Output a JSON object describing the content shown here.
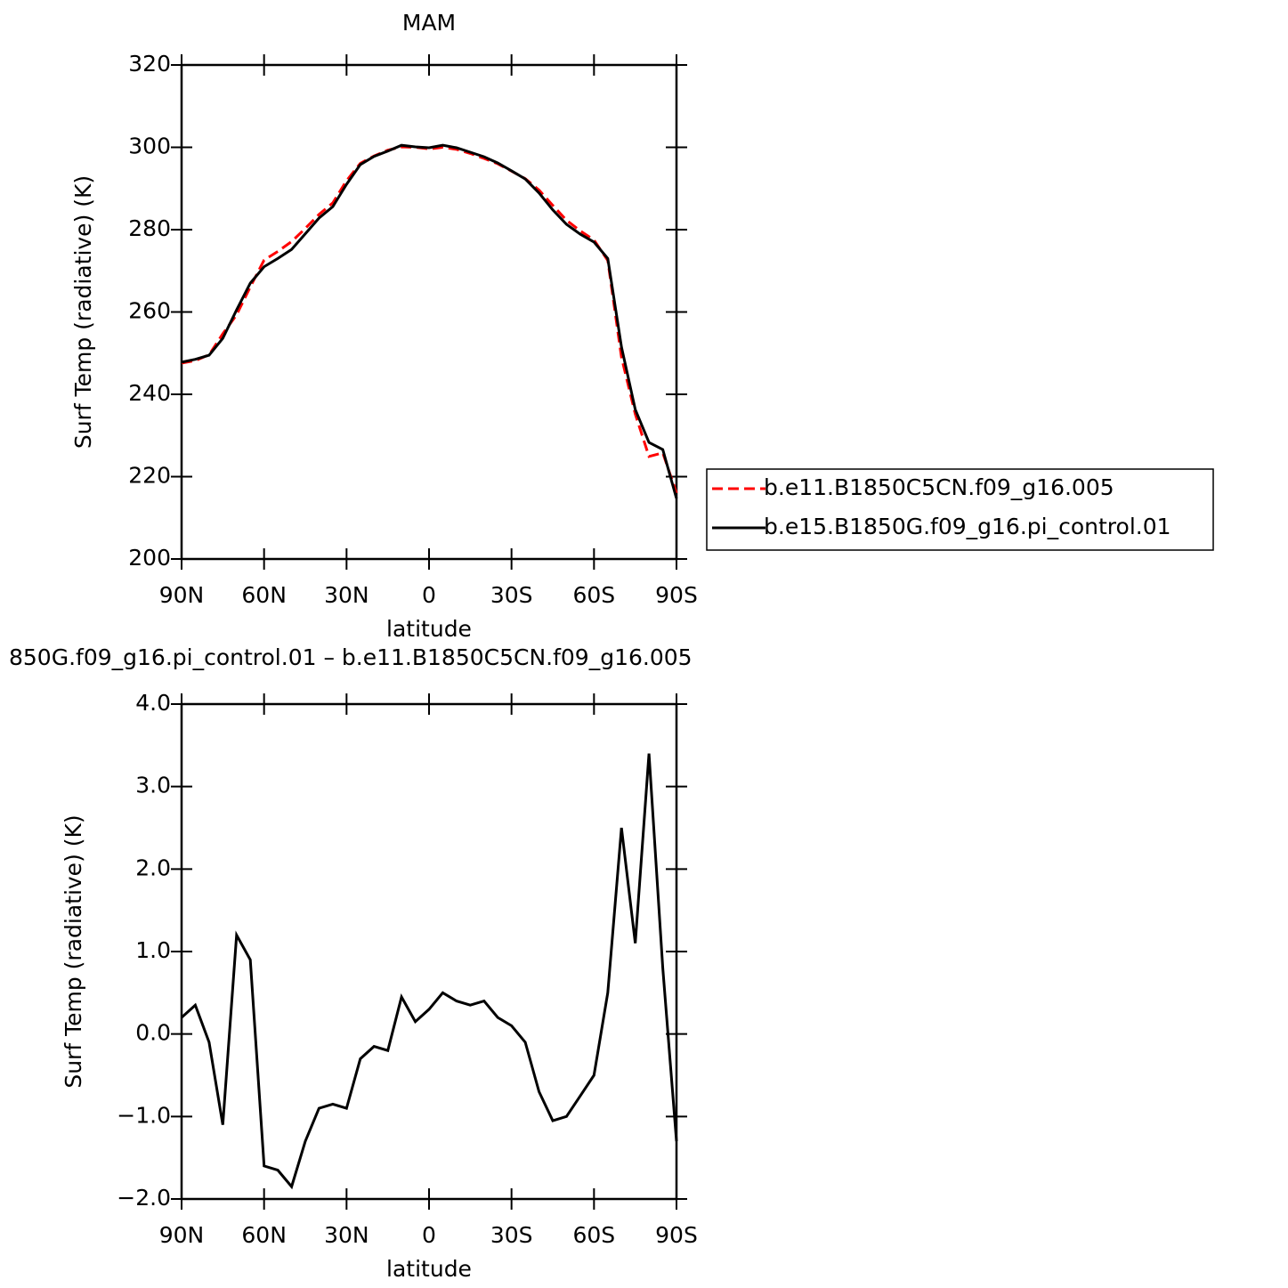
{
  "chart_data": [
    {
      "type": "line",
      "title": "MAM",
      "x_label": "latitude",
      "y_label": "Surf Temp (radiative) (K)",
      "x": [
        90,
        85,
        80,
        75,
        70,
        65,
        60,
        55,
        50,
        45,
        40,
        35,
        30,
        25,
        20,
        15,
        10,
        5,
        0,
        -5,
        -10,
        -15,
        -20,
        -25,
        -30,
        -35,
        -40,
        -45,
        -50,
        -55,
        -60,
        -65,
        -70,
        -75,
        -80,
        -85,
        -90
      ],
      "series": [
        {
          "name": "b.e11.B1850C5CN.f09_g16.005",
          "color": "#ff0000",
          "style": "dashed",
          "values": [
            247.6,
            248.2,
            249.6,
            254.7,
            259.3,
            266.1,
            272.6,
            274.7,
            277.1,
            280.3,
            283.7,
            286.5,
            291.9,
            296.1,
            297.9,
            299.3,
            300.1,
            300.0,
            299.6,
            300.0,
            299.5,
            298.5,
            297.3,
            296.0,
            294.2,
            292.4,
            289.6,
            285.9,
            282.3,
            279.7,
            277.5,
            272.5,
            249.0,
            235.2,
            224.9,
            225.8,
            216.0
          ]
        },
        {
          "name": "b.e15.B1850G.f09_g16.pi_control.01",
          "color": "#000000",
          "style": "solid",
          "values": [
            247.8,
            248.5,
            249.5,
            253.6,
            260.5,
            267.0,
            271.0,
            273.0,
            275.2,
            279.0,
            282.8,
            285.6,
            291.0,
            295.8,
            297.8,
            299.1,
            300.5,
            300.1,
            299.9,
            300.5,
            299.9,
            298.8,
            297.7,
            296.2,
            294.3,
            292.3,
            288.9,
            284.8,
            281.3,
            278.9,
            277.0,
            273.0,
            251.5,
            236.3,
            228.3,
            226.6,
            214.7
          ]
        }
      ],
      "xlim": [
        90,
        -90
      ],
      "xticks": [
        {
          "value": 90,
          "label": "90N"
        },
        {
          "value": 60,
          "label": "60N"
        },
        {
          "value": 30,
          "label": "30N"
        },
        0,
        {
          "value": -30,
          "label": "30S"
        },
        {
          "value": -60,
          "label": "60S"
        },
        {
          "value": -90,
          "label": "90S"
        }
      ],
      "ylim": [
        200,
        320
      ],
      "yticks": [
        200,
        220,
        240,
        260,
        280,
        300,
        320
      ],
      "legend": "right"
    },
    {
      "type": "line",
      "title": "850G.f09_g16.pi_control.01 – b.e11.B1850C5CN.f09_g16.005",
      "x_label": "latitude",
      "y_label": "Surf Temp (radiative) (K)",
      "x": [
        90,
        85,
        80,
        75,
        70,
        65,
        60,
        55,
        50,
        45,
        40,
        35,
        30,
        25,
        20,
        15,
        10,
        5,
        0,
        -5,
        -10,
        -15,
        -20,
        -25,
        -30,
        -35,
        -40,
        -45,
        -50,
        -55,
        -60,
        -65,
        -70,
        -75,
        -80,
        -85,
        -90
      ],
      "series": [
        {
          "color": "#000000",
          "style": "solid",
          "values": [
            0.2,
            0.35,
            -0.1,
            -1.1,
            1.2,
            0.9,
            -1.6,
            -1.65,
            -1.85,
            -1.3,
            -0.9,
            -0.85,
            -0.9,
            -0.3,
            -0.15,
            -0.2,
            0.45,
            0.15,
            0.3,
            0.5,
            0.4,
            0.35,
            0.4,
            0.2,
            0.1,
            -0.1,
            -0.7,
            -1.05,
            -1.0,
            -0.75,
            -0.5,
            0.5,
            2.5,
            1.1,
            3.4,
            0.8,
            -1.3
          ]
        }
      ],
      "xlim": [
        90,
        -90
      ],
      "xticks": [
        {
          "value": 90,
          "label": "90N"
        },
        {
          "value": 60,
          "label": "60N"
        },
        {
          "value": 30,
          "label": "30N"
        },
        0,
        {
          "value": -30,
          "label": "30S"
        },
        {
          "value": -60,
          "label": "60S"
        },
        {
          "value": -90,
          "label": "90S"
        }
      ],
      "ylim": [
        -2,
        4
      ],
      "yticks": [
        {
          "value": -2,
          "label": "−2.0"
        },
        {
          "value": -1,
          "label": "−1.0"
        },
        {
          "value": 0,
          "label": "0.0"
        },
        {
          "value": 1,
          "label": "1.0"
        },
        {
          "value": 2,
          "label": "2.0"
        },
        {
          "value": 3,
          "label": "3.0"
        },
        {
          "value": 4,
          "label": "4.0"
        }
      ]
    }
  ]
}
